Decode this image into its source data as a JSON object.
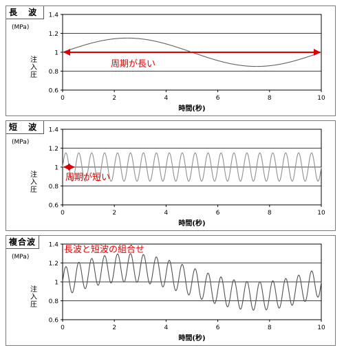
{
  "chart_data": [
    {
      "type": "line",
      "panel_title": "長 波",
      "yunit": "(MPa)",
      "ylabel": "注入圧",
      "xlabel": "時間(秒)",
      "xlim": [
        0,
        10
      ],
      "ylim": [
        0.6,
        1.4
      ],
      "xticks": [
        0,
        2,
        4,
        6,
        8,
        10
      ],
      "yticks": [
        0.6,
        0.8,
        1,
        1.2,
        1.4
      ],
      "grid": "horizontal",
      "series": [
        {
          "formula": "1 + 0.15*sin(2*pi*t/10)",
          "baseline": 1,
          "amplitude": 0.15,
          "period": 10,
          "color": "#606060"
        }
      ],
      "annotation": {
        "text": "周期が長い",
        "arrow_x": [
          0,
          10
        ],
        "arrow_y": 1,
        "color": "#e00000"
      }
    },
    {
      "type": "line",
      "panel_title": "短 波",
      "yunit": "(MPa)",
      "ylabel": "注入圧",
      "xlabel": "時間(秒)",
      "xlim": [
        0,
        10
      ],
      "ylim": [
        0.6,
        1.4
      ],
      "xticks": [
        0,
        2,
        4,
        6,
        8,
        10
      ],
      "yticks": [
        0.6,
        0.8,
        1,
        1.2,
        1.4
      ],
      "grid": "horizontal",
      "series": [
        {
          "formula": "1 + 0.15*sin(2*pi*t/0.5)",
          "baseline": 1,
          "amplitude": 0.15,
          "period": 0.5,
          "color": "#909090"
        }
      ],
      "annotation": {
        "text": "周期が短い",
        "arrow_x": [
          0,
          0.5
        ],
        "arrow_y": 1,
        "color": "#e00000"
      }
    },
    {
      "type": "line",
      "panel_title": "複合波",
      "yunit": "(MPa)",
      "ylabel": "注入圧",
      "xlabel": "時間(秒)",
      "xlim": [
        0,
        10
      ],
      "ylim": [
        0.6,
        1.4
      ],
      "xticks": [
        0,
        2,
        4,
        6,
        8,
        10
      ],
      "yticks": [
        0.6,
        0.8,
        1,
        1.2,
        1.4
      ],
      "grid": "horizontal",
      "series": [
        {
          "formula": "1 + 0.15*sin(2*pi*t/10) + 0.15*sin(2*pi*t/0.5)",
          "baseline": 1,
          "amplitude": 0.15,
          "period": 10,
          "amplitude2": 0.15,
          "period2": 0.5,
          "color": "#505050"
        }
      ],
      "annotation": {
        "text": "長波と短波の組合せ",
        "color": "#e00000"
      }
    }
  ]
}
